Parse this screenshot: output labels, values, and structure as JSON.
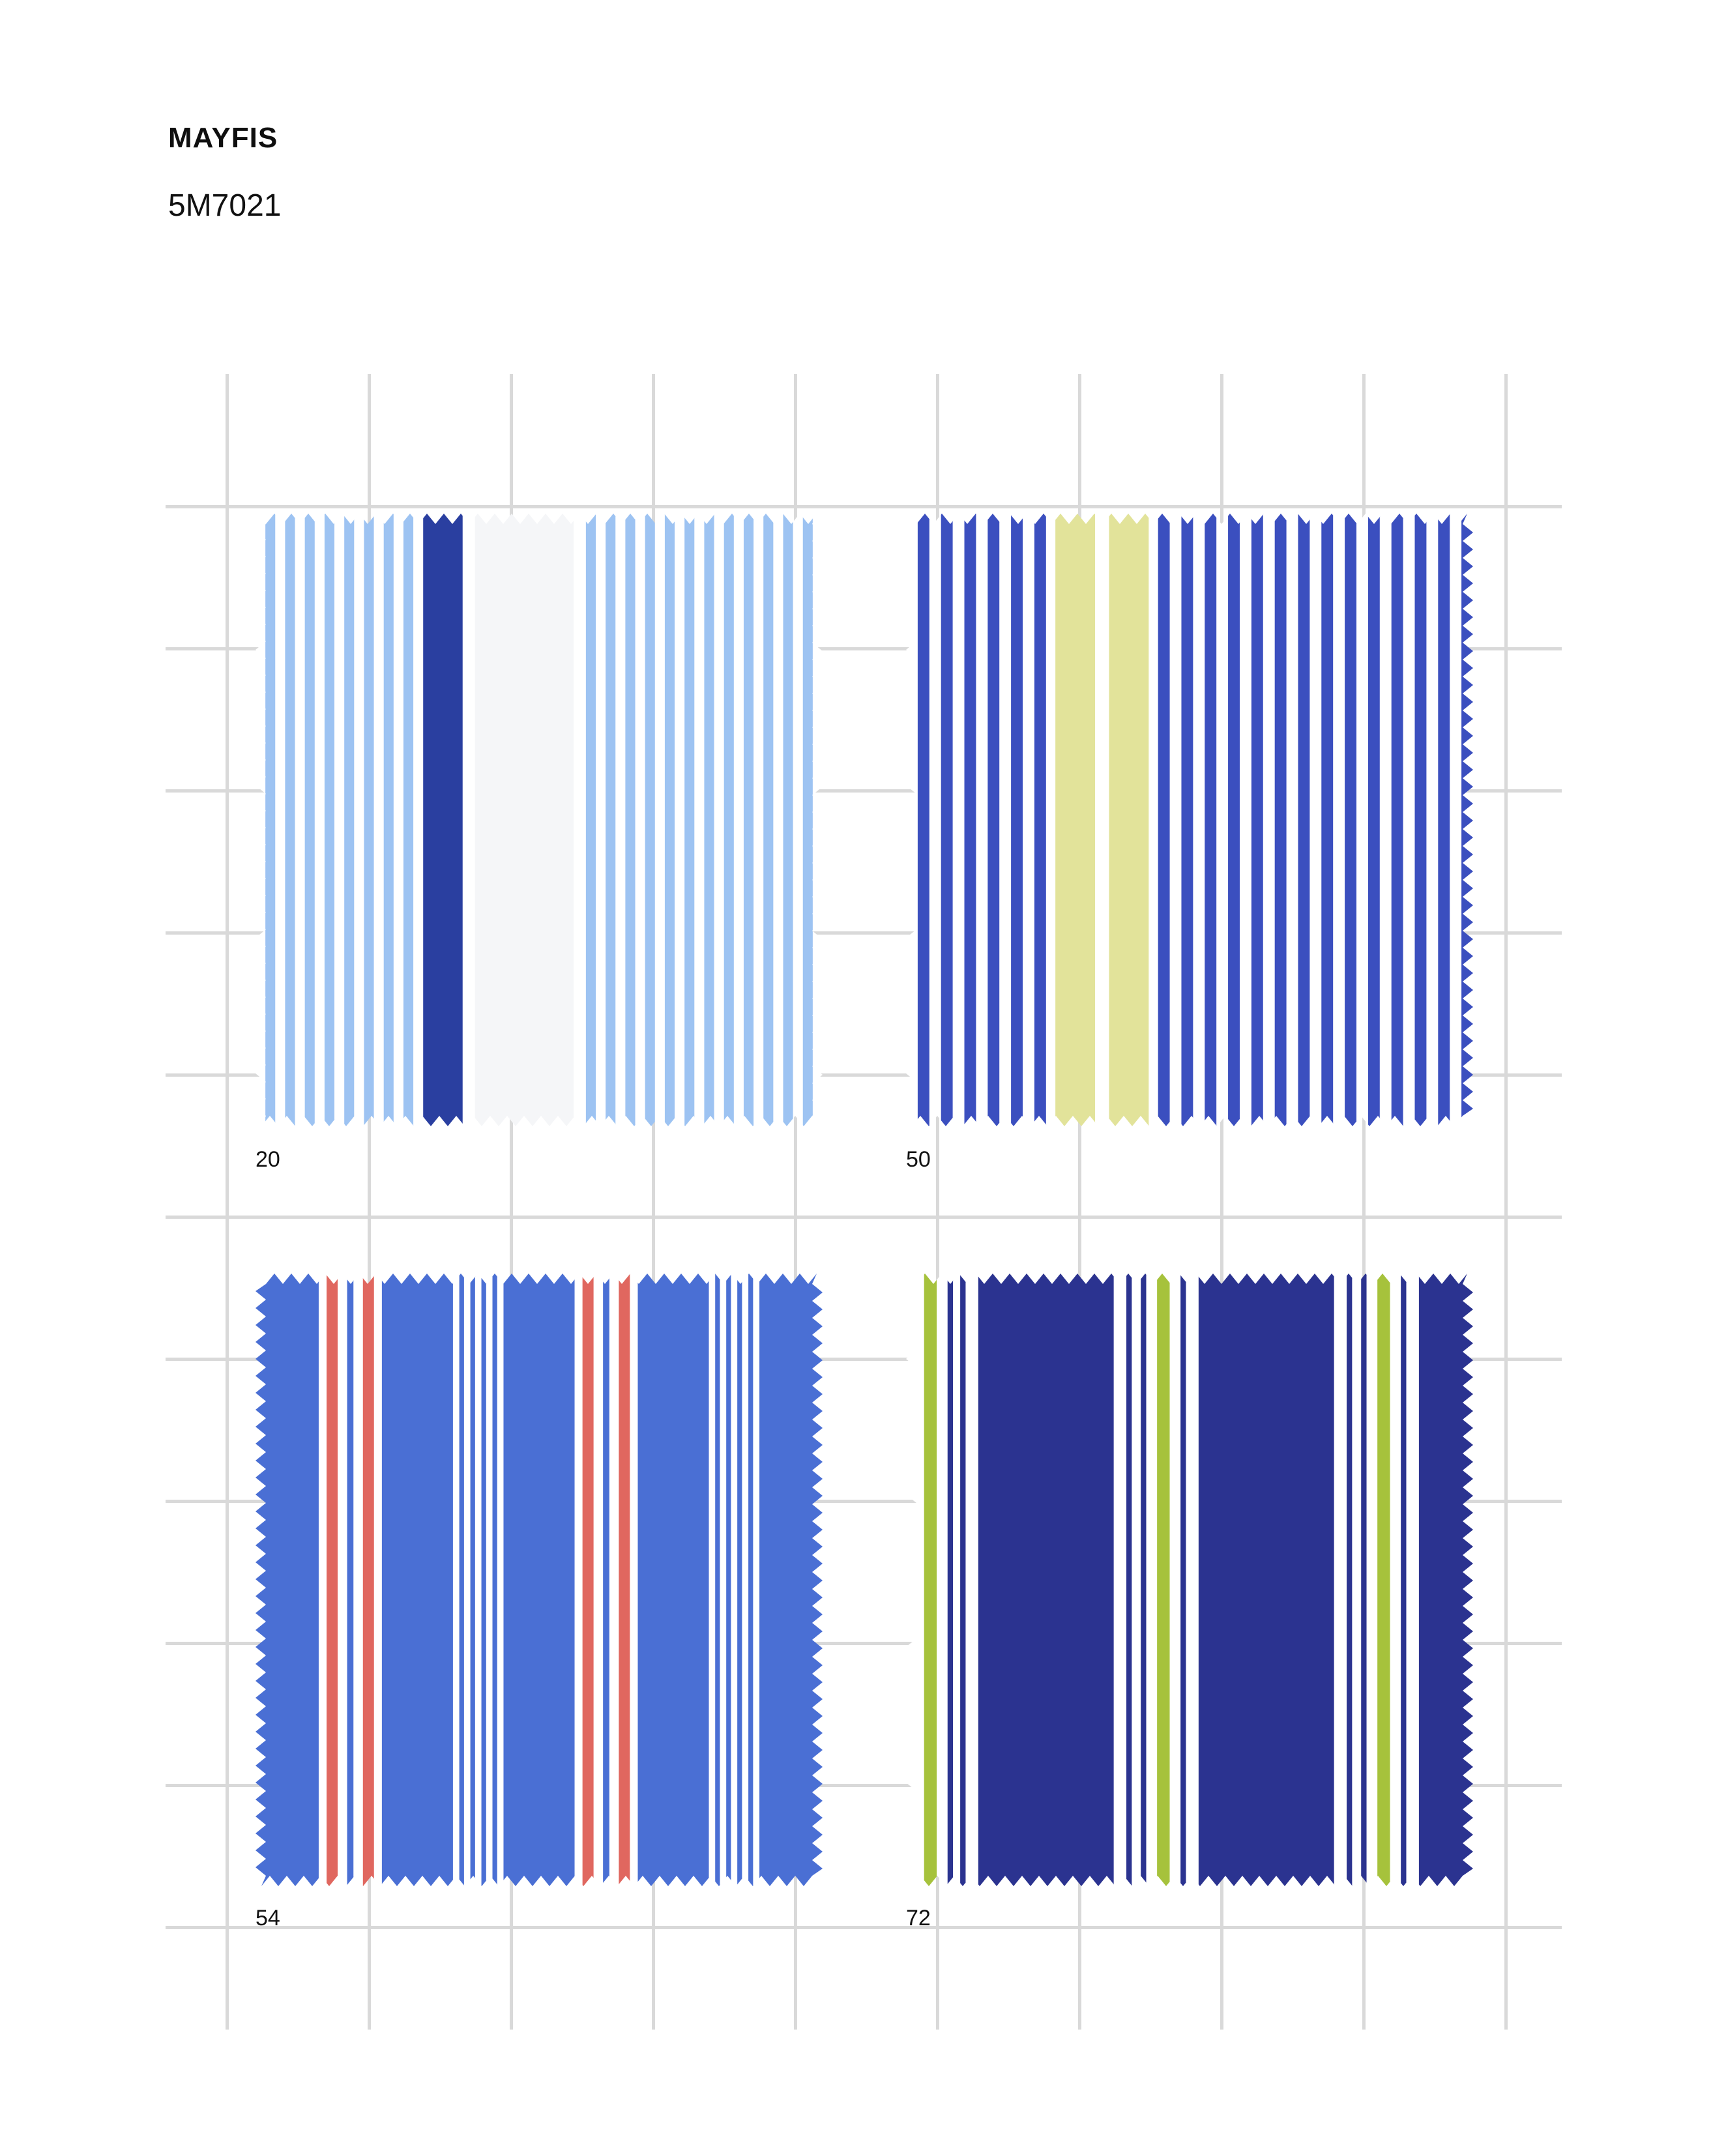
{
  "header": {
    "title": "MAYFIS",
    "code": "5M7021"
  },
  "swatches": [
    {
      "label": "20",
      "pattern": [
        {
          "w": 8,
          "c": "#ffffff"
        },
        {
          "w": 8,
          "c": "#9dc3f2"
        },
        {
          "w": 8,
          "c": "#ffffff"
        },
        {
          "w": 8,
          "c": "#9dc3f2"
        },
        {
          "w": 8,
          "c": "#ffffff"
        },
        {
          "w": 8,
          "c": "#9dc3f2"
        },
        {
          "w": 8,
          "c": "#ffffff"
        },
        {
          "w": 8,
          "c": "#9dc3f2"
        },
        {
          "w": 8,
          "c": "#ffffff"
        },
        {
          "w": 8,
          "c": "#9dc3f2"
        },
        {
          "w": 8,
          "c": "#ffffff"
        },
        {
          "w": 8,
          "c": "#9dc3f2"
        },
        {
          "w": 8,
          "c": "#ffffff"
        },
        {
          "w": 8,
          "c": "#9dc3f2"
        },
        {
          "w": 8,
          "c": "#ffffff"
        },
        {
          "w": 8,
          "c": "#9dc3f2"
        },
        {
          "w": 8,
          "c": "#ffffff"
        },
        {
          "w": 32,
          "c": "#2a3fa0"
        },
        {
          "w": 10,
          "c": "#ffffff"
        },
        {
          "w": 80,
          "c": "#f5f6f8"
        },
        {
          "w": 10,
          "c": "#ffffff"
        },
        {
          "w": 8,
          "c": "#9dc3f2"
        },
        {
          "w": 8,
          "c": "#ffffff"
        },
        {
          "w": 8,
          "c": "#9dc3f2"
        },
        {
          "w": 8,
          "c": "#ffffff"
        },
        {
          "w": 8,
          "c": "#9dc3f2"
        },
        {
          "w": 8,
          "c": "#ffffff"
        },
        {
          "w": 8,
          "c": "#9dc3f2"
        },
        {
          "w": 8,
          "c": "#ffffff"
        },
        {
          "w": 8,
          "c": "#9dc3f2"
        },
        {
          "w": 8,
          "c": "#ffffff"
        },
        {
          "w": 8,
          "c": "#9dc3f2"
        },
        {
          "w": 8,
          "c": "#ffffff"
        },
        {
          "w": 8,
          "c": "#9dc3f2"
        },
        {
          "w": 8,
          "c": "#ffffff"
        },
        {
          "w": 8,
          "c": "#9dc3f2"
        },
        {
          "w": 8,
          "c": "#ffffff"
        },
        {
          "w": 8,
          "c": "#9dc3f2"
        },
        {
          "w": 8,
          "c": "#ffffff"
        },
        {
          "w": 8,
          "c": "#9dc3f2"
        },
        {
          "w": 8,
          "c": "#ffffff"
        },
        {
          "w": 8,
          "c": "#9dc3f2"
        },
        {
          "w": 8,
          "c": "#ffffff"
        },
        {
          "w": 8,
          "c": "#9dc3f2"
        },
        {
          "w": 8,
          "c": "#ffffff"
        }
      ]
    },
    {
      "label": "50",
      "pattern": [
        {
          "w": 10,
          "c": "#ffffff"
        },
        {
          "w": 10,
          "c": "#3b4fbf"
        },
        {
          "w": 10,
          "c": "#ffffff"
        },
        {
          "w": 10,
          "c": "#3b4fbf"
        },
        {
          "w": 10,
          "c": "#ffffff"
        },
        {
          "w": 10,
          "c": "#3b4fbf"
        },
        {
          "w": 10,
          "c": "#ffffff"
        },
        {
          "w": 10,
          "c": "#3b4fbf"
        },
        {
          "w": 10,
          "c": "#ffffff"
        },
        {
          "w": 10,
          "c": "#3b4fbf"
        },
        {
          "w": 10,
          "c": "#ffffff"
        },
        {
          "w": 10,
          "c": "#3b4fbf"
        },
        {
          "w": 8,
          "c": "#ffffff"
        },
        {
          "w": 34,
          "c": "#e2e39a"
        },
        {
          "w": 12,
          "c": "#ffffff"
        },
        {
          "w": 34,
          "c": "#e2e39a"
        },
        {
          "w": 8,
          "c": "#ffffff"
        },
        {
          "w": 10,
          "c": "#3b4fbf"
        },
        {
          "w": 10,
          "c": "#ffffff"
        },
        {
          "w": 10,
          "c": "#3b4fbf"
        },
        {
          "w": 10,
          "c": "#ffffff"
        },
        {
          "w": 10,
          "c": "#3b4fbf"
        },
        {
          "w": 10,
          "c": "#ffffff"
        },
        {
          "w": 10,
          "c": "#3b4fbf"
        },
        {
          "w": 10,
          "c": "#ffffff"
        },
        {
          "w": 10,
          "c": "#3b4fbf"
        },
        {
          "w": 10,
          "c": "#ffffff"
        },
        {
          "w": 10,
          "c": "#3b4fbf"
        },
        {
          "w": 10,
          "c": "#ffffff"
        },
        {
          "w": 10,
          "c": "#3b4fbf"
        },
        {
          "w": 10,
          "c": "#ffffff"
        },
        {
          "w": 10,
          "c": "#3b4fbf"
        },
        {
          "w": 10,
          "c": "#ffffff"
        },
        {
          "w": 10,
          "c": "#3b4fbf"
        },
        {
          "w": 10,
          "c": "#ffffff"
        },
        {
          "w": 10,
          "c": "#3b4fbf"
        },
        {
          "w": 10,
          "c": "#ffffff"
        },
        {
          "w": 10,
          "c": "#3b4fbf"
        },
        {
          "w": 10,
          "c": "#ffffff"
        },
        {
          "w": 10,
          "c": "#3b4fbf"
        },
        {
          "w": 10,
          "c": "#ffffff"
        },
        {
          "w": 10,
          "c": "#3b4fbf"
        },
        {
          "w": 10,
          "c": "#ffffff"
        },
        {
          "w": 10,
          "c": "#3b4fbf"
        }
      ]
    },
    {
      "label": "54",
      "pattern": [
        {
          "w": 80,
          "c": "#4a6fd4"
        },
        {
          "w": 10,
          "c": "#ffffff"
        },
        {
          "w": 14,
          "c": "#e0675f"
        },
        {
          "w": 12,
          "c": "#ffffff"
        },
        {
          "w": 8,
          "c": "#4a6fd4"
        },
        {
          "w": 12,
          "c": "#ffffff"
        },
        {
          "w": 14,
          "c": "#e0675f"
        },
        {
          "w": 10,
          "c": "#ffffff"
        },
        {
          "w": 90,
          "c": "#4a6fd4"
        },
        {
          "w": 8,
          "c": "#ffffff"
        },
        {
          "w": 6,
          "c": "#4a6fd4"
        },
        {
          "w": 8,
          "c": "#ffffff"
        },
        {
          "w": 6,
          "c": "#4a6fd4"
        },
        {
          "w": 8,
          "c": "#ffffff"
        },
        {
          "w": 6,
          "c": "#4a6fd4"
        },
        {
          "w": 8,
          "c": "#ffffff"
        },
        {
          "w": 6,
          "c": "#4a6fd4"
        },
        {
          "w": 8,
          "c": "#ffffff"
        },
        {
          "w": 90,
          "c": "#4a6fd4"
        },
        {
          "w": 10,
          "c": "#ffffff"
        },
        {
          "w": 14,
          "c": "#e0675f"
        },
        {
          "w": 12,
          "c": "#ffffff"
        },
        {
          "w": 8,
          "c": "#4a6fd4"
        },
        {
          "w": 12,
          "c": "#ffffff"
        },
        {
          "w": 14,
          "c": "#e0675f"
        },
        {
          "w": 10,
          "c": "#ffffff"
        },
        {
          "w": 90,
          "c": "#4a6fd4"
        },
        {
          "w": 8,
          "c": "#ffffff"
        },
        {
          "w": 6,
          "c": "#4a6fd4"
        },
        {
          "w": 8,
          "c": "#ffffff"
        },
        {
          "w": 6,
          "c": "#4a6fd4"
        },
        {
          "w": 8,
          "c": "#ffffff"
        },
        {
          "w": 6,
          "c": "#4a6fd4"
        },
        {
          "w": 8,
          "c": "#ffffff"
        },
        {
          "w": 6,
          "c": "#4a6fd4"
        },
        {
          "w": 8,
          "c": "#ffffff"
        },
        {
          "w": 80,
          "c": "#4a6fd4"
        }
      ]
    },
    {
      "label": "72",
      "pattern": [
        {
          "w": 20,
          "c": "#ffffff"
        },
        {
          "w": 14,
          "c": "#a6c23c"
        },
        {
          "w": 12,
          "c": "#ffffff"
        },
        {
          "w": 6,
          "c": "#2b3390"
        },
        {
          "w": 8,
          "c": "#ffffff"
        },
        {
          "w": 6,
          "c": "#2b3390"
        },
        {
          "w": 14,
          "c": "#ffffff"
        },
        {
          "w": 150,
          "c": "#2b3390"
        },
        {
          "w": 14,
          "c": "#ffffff"
        },
        {
          "w": 6,
          "c": "#2b3390"
        },
        {
          "w": 10,
          "c": "#ffffff"
        },
        {
          "w": 6,
          "c": "#2b3390"
        },
        {
          "w": 12,
          "c": "#ffffff"
        },
        {
          "w": 14,
          "c": "#a6c23c"
        },
        {
          "w": 12,
          "c": "#ffffff"
        },
        {
          "w": 6,
          "c": "#2b3390"
        },
        {
          "w": 14,
          "c": "#ffffff"
        },
        {
          "w": 150,
          "c": "#2b3390"
        },
        {
          "w": 14,
          "c": "#ffffff"
        },
        {
          "w": 6,
          "c": "#2b3390"
        },
        {
          "w": 10,
          "c": "#ffffff"
        },
        {
          "w": 6,
          "c": "#2b3390"
        },
        {
          "w": 12,
          "c": "#ffffff"
        },
        {
          "w": 14,
          "c": "#a6c23c"
        },
        {
          "w": 12,
          "c": "#ffffff"
        },
        {
          "w": 6,
          "c": "#2b3390"
        },
        {
          "w": 14,
          "c": "#ffffff"
        },
        {
          "w": 60,
          "c": "#2b3390"
        }
      ]
    }
  ]
}
